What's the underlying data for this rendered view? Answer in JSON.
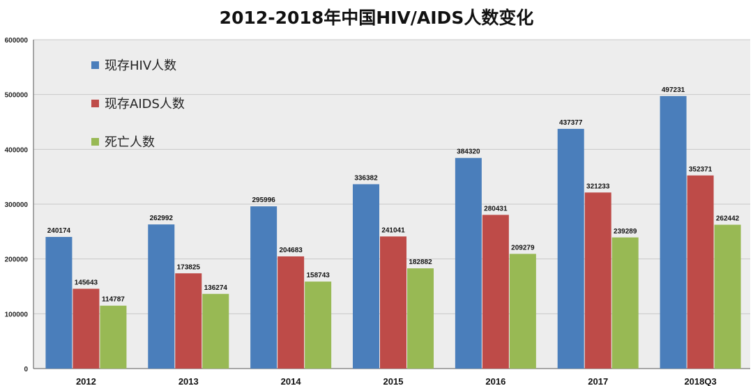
{
  "chart_data": {
    "type": "bar",
    "title": "2012-2018年中国HIV/AIDS人数变化",
    "categories": [
      "2012",
      "2013",
      "2014",
      "2015",
      "2016",
      "2017",
      "2018Q3"
    ],
    "series": [
      {
        "name": "现存HIV人数",
        "color": "#4a7ebb",
        "values": [
          240174,
          262992,
          295996,
          336382,
          384320,
          437377,
          497231
        ]
      },
      {
        "name": "现存AIDS人数",
        "color": "#be4b48",
        "values": [
          145643,
          173825,
          204683,
          241041,
          280431,
          321233,
          352371
        ]
      },
      {
        "name": "死亡人数",
        "color": "#98b954",
        "values": [
          114787,
          136274,
          158743,
          182882,
          209279,
          239289,
          262442
        ]
      }
    ],
    "ylim": [
      0,
      600000
    ],
    "yticks": [
      0,
      100000,
      200000,
      300000,
      400000,
      500000,
      600000
    ],
    "grid": true,
    "legend_position": "top-left",
    "colors": {
      "plot_background": "#ededed",
      "gridline": "#c8c8c8"
    }
  }
}
